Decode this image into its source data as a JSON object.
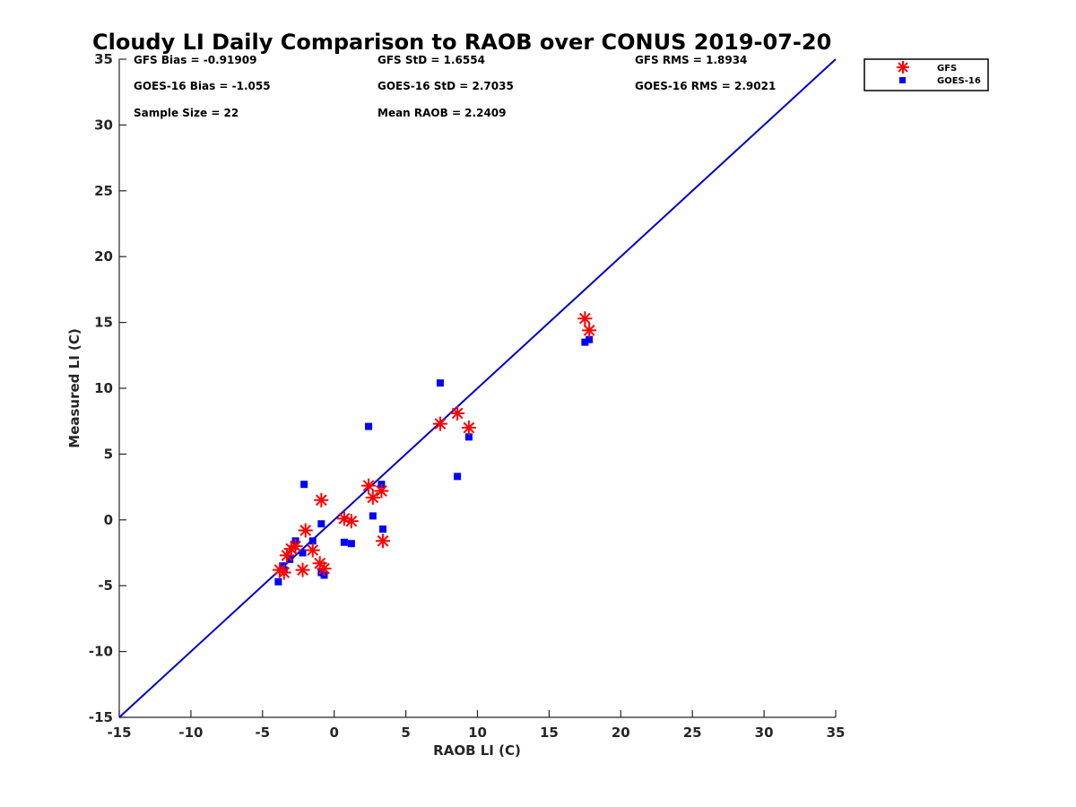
{
  "chart_data": {
    "type": "scatter",
    "title": "Cloudy LI Daily Comparison to RAOB over CONUS 2019-07-20",
    "xlabel": "RAOB LI (C)",
    "ylabel": "Measured LI (C)",
    "xlim": [
      -15,
      35
    ],
    "ylim": [
      -15,
      35
    ],
    "xticks": [
      -15,
      -10,
      -5,
      0,
      5,
      10,
      15,
      20,
      25,
      30,
      35
    ],
    "yticks": [
      -15,
      -10,
      -5,
      0,
      5,
      10,
      15,
      20,
      25,
      30,
      35
    ],
    "grid": false,
    "legend_position": "top-right outside",
    "reference_line": {
      "name": "1:1 line",
      "x": [
        -15,
        35
      ],
      "y": [
        -15,
        35
      ],
      "color": "#0000cc"
    },
    "stats": {
      "gfs_bias": "GFS Bias = -0.91909",
      "gfs_std": "GFS StD = 1.6554",
      "gfs_rms": "GFS RMS = 1.8934",
      "goes_bias": "GOES-16 Bias = -1.055",
      "goes_std": "GOES-16 StD = 2.7035",
      "goes_rms": "GOES-16 RMS = 2.9021",
      "sample_size": "Sample Size = 22",
      "mean_raob": "Mean RAOB = 2.2409"
    },
    "series": [
      {
        "name": "GFS",
        "marker": "asterisk",
        "color": "#ff0000",
        "x": [
          -3.8,
          -3.5,
          -3.3,
          -3.0,
          -2.7,
          -2.2,
          -2.0,
          -1.5,
          -1.0,
          -0.9,
          -0.7,
          0.7,
          1.2,
          2.4,
          2.7,
          3.3,
          3.4,
          7.4,
          8.6,
          9.4,
          17.5,
          17.8
        ],
        "y": [
          -3.8,
          -4.0,
          -2.7,
          -2.2,
          -2.0,
          -3.8,
          -0.8,
          -2.3,
          -3.3,
          1.5,
          -3.7,
          0.1,
          -0.1,
          2.6,
          1.7,
          2.2,
          -1.6,
          7.3,
          8.1,
          7.0,
          15.3,
          14.4
        ]
      },
      {
        "name": "GOES-16",
        "marker": "square",
        "color": "#0000ff",
        "x": [
          -3.9,
          -3.6,
          -3.5,
          -3.1,
          -2.7,
          -2.2,
          -2.1,
          -1.5,
          -0.9,
          -0.9,
          -0.7,
          0.7,
          1.2,
          2.4,
          2.7,
          3.3,
          3.4,
          7.4,
          8.6,
          9.4,
          17.5,
          17.8
        ],
        "y": [
          -4.7,
          -3.5,
          -3.8,
          -3.0,
          -1.6,
          -2.5,
          2.7,
          -1.6,
          -4.0,
          -0.3,
          -4.2,
          -1.7,
          -1.8,
          7.1,
          0.3,
          2.7,
          -0.7,
          10.4,
          3.3,
          6.3,
          13.5,
          13.7
        ]
      }
    ]
  }
}
